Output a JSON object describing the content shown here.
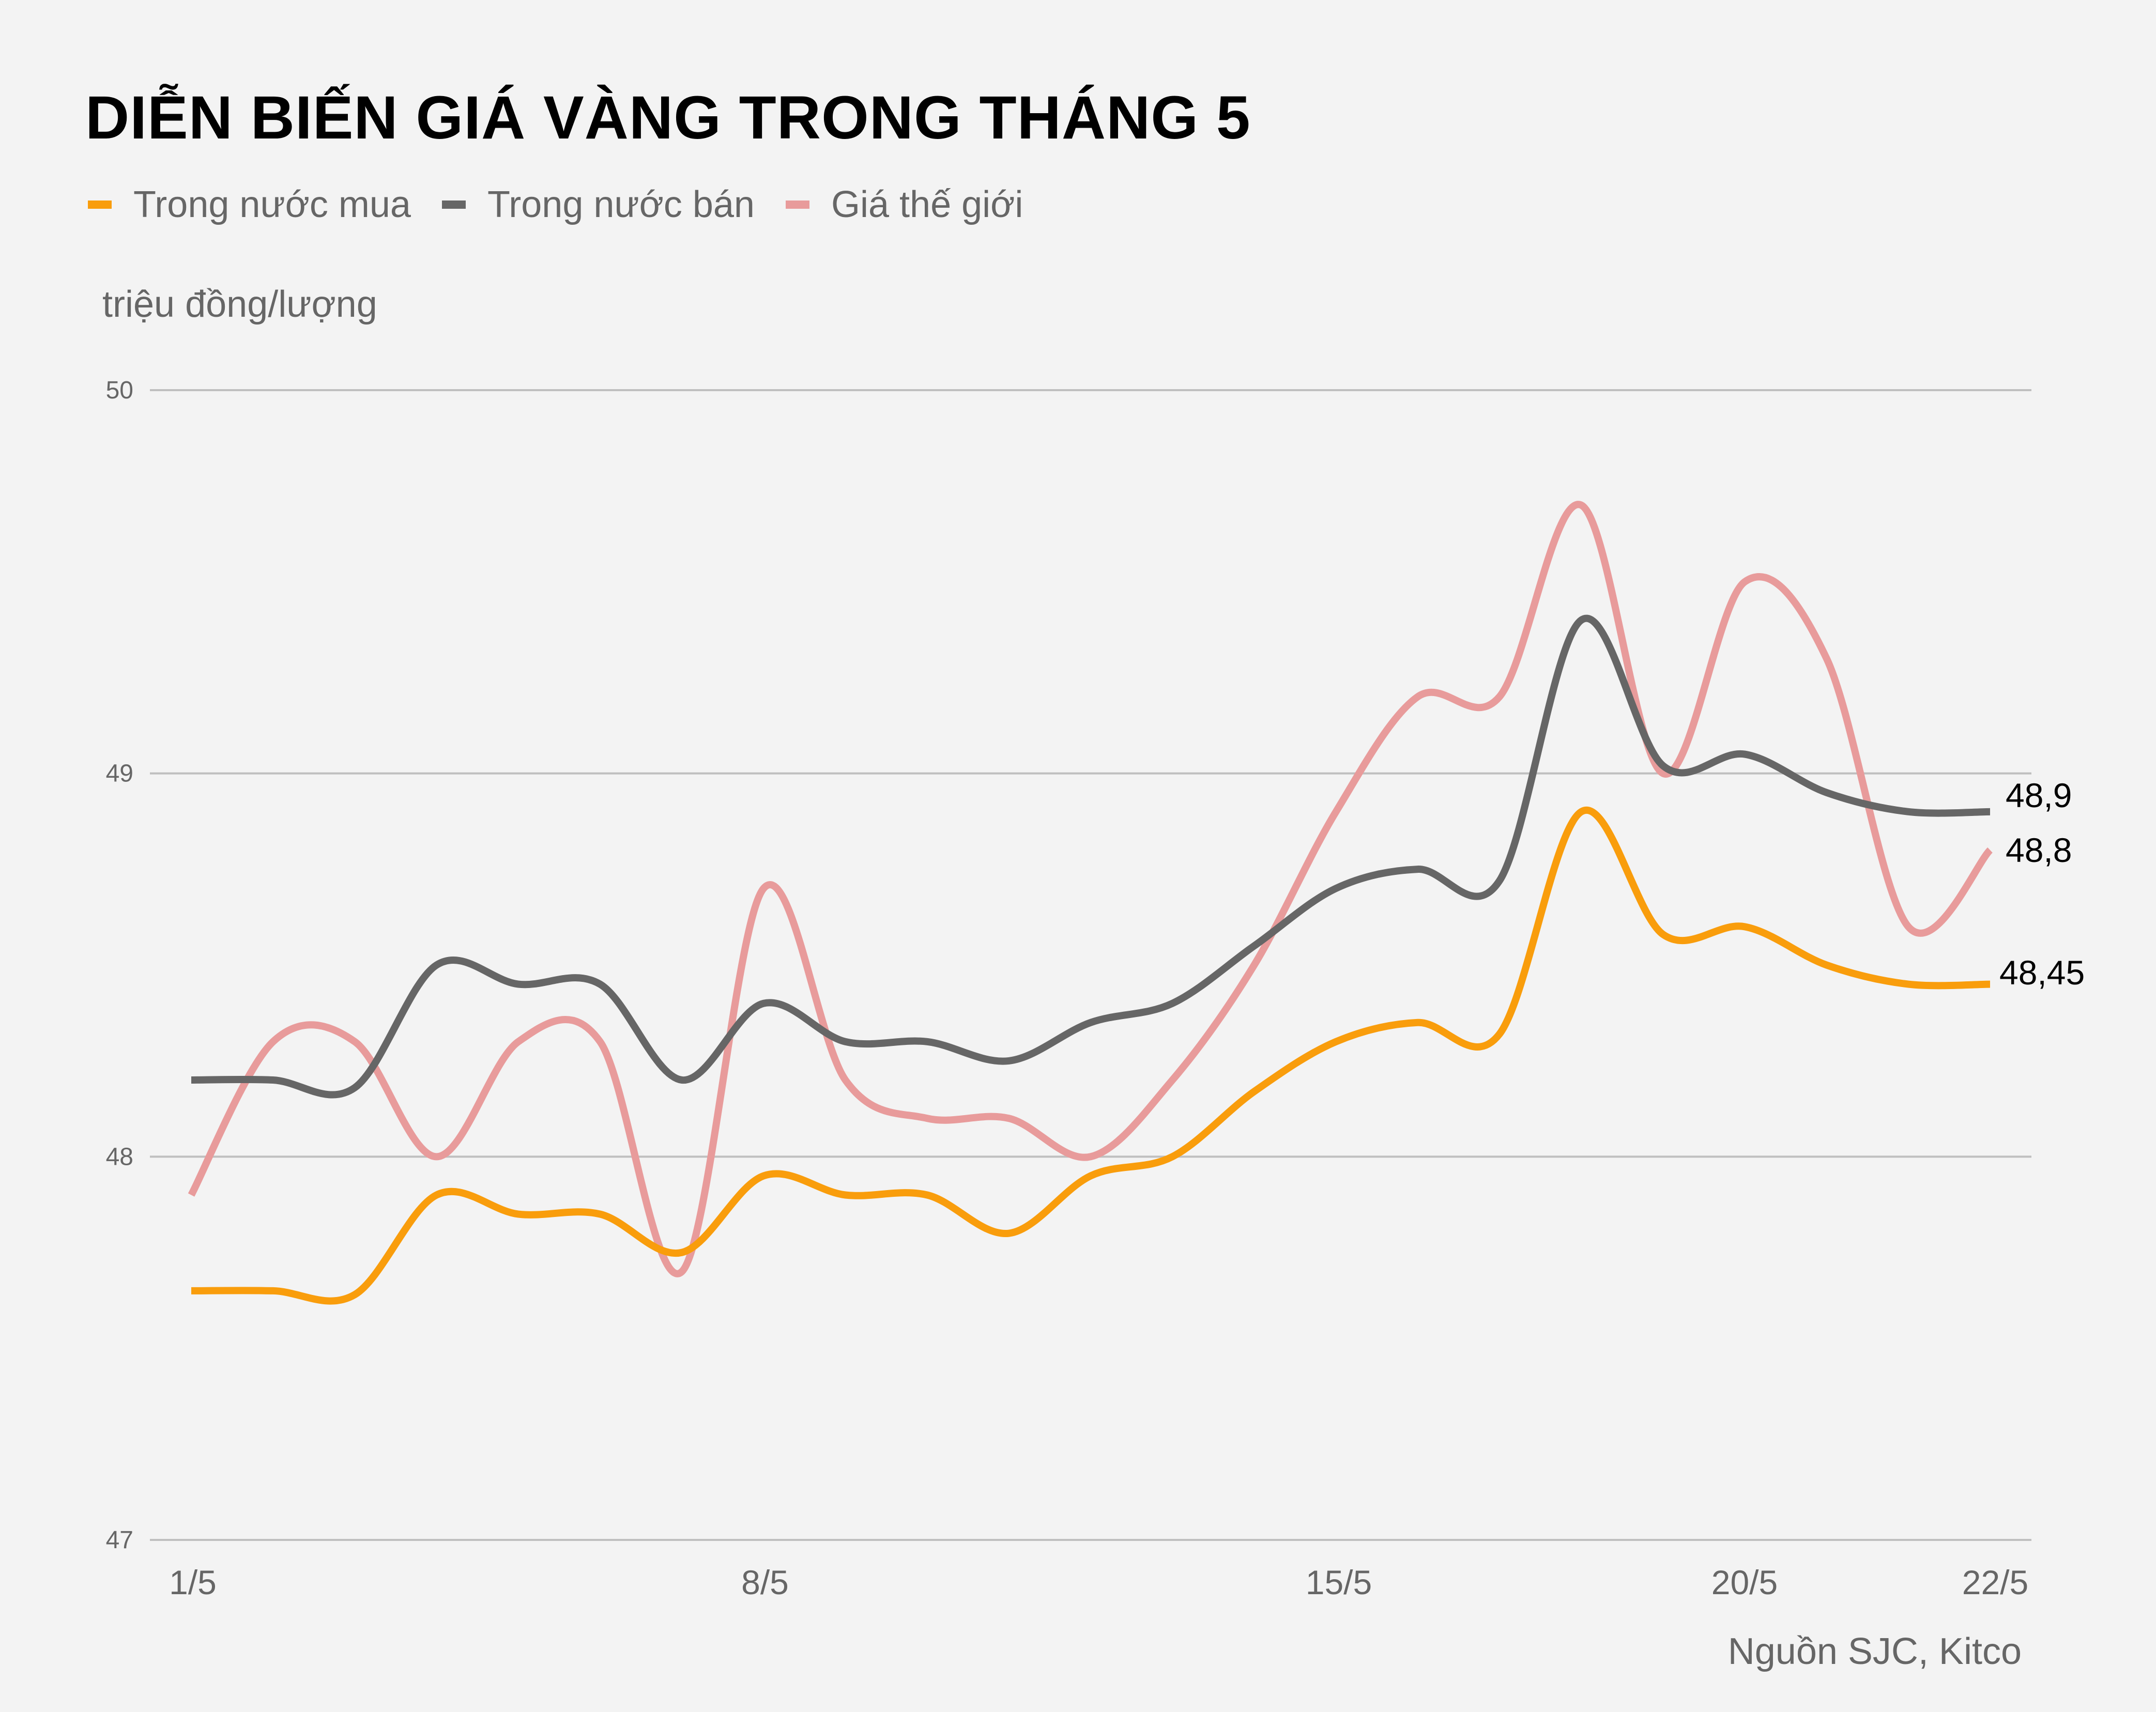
{
  "title": "DIỄN BIẾN GIÁ VÀNG TRONG THÁNG 5",
  "unit_label": "triệu đồng/lượng",
  "source": "Nguồn SJC, Kitco",
  "legend": [
    {
      "label": "Trong nước mua",
      "color": "#f99d0c"
    },
    {
      "label": "Trong nước bán",
      "color": "#666666"
    },
    {
      "label": "Giá thế giới",
      "color": "#e89b9b"
    }
  ],
  "end_labels": {
    "ban": "48,9",
    "the_gioi": "48,8",
    "mua": "48,45"
  },
  "chart_data": {
    "type": "line",
    "title": "DIỄN BIẾN GIÁ VÀNG TRONG THÁNG 5",
    "xlabel": "",
    "ylabel": "triệu đồng/lượng",
    "ylim": [
      47,
      50
    ],
    "yticks": [
      47,
      48,
      49,
      50
    ],
    "xtick_labels": [
      "1/5",
      "8/5",
      "15/5",
      "20/5",
      "22/5"
    ],
    "grid": true,
    "legend_position": "top",
    "x": [
      0,
      1,
      2,
      3,
      4,
      5,
      6,
      7,
      8,
      9,
      10,
      11,
      12,
      13,
      14,
      15,
      16,
      17,
      18,
      19,
      20,
      21,
      22
    ],
    "series": [
      {
        "name": "Trong nước mua",
        "color": "#f99d0c",
        "values": [
          47.65,
          47.65,
          47.64,
          47.9,
          47.85,
          47.85,
          47.75,
          47.95,
          47.9,
          47.9,
          47.8,
          47.95,
          48.0,
          48.17,
          48.3,
          48.35,
          48.32,
          48.9,
          48.58,
          48.6,
          48.5,
          48.45,
          48.45
        ]
      },
      {
        "name": "Trong nước bán",
        "color": "#666666",
        "values": [
          48.2,
          48.2,
          48.18,
          48.5,
          48.45,
          48.45,
          48.2,
          48.4,
          48.3,
          48.3,
          48.25,
          48.35,
          48.4,
          48.55,
          48.7,
          48.75,
          48.72,
          49.4,
          49.02,
          49.05,
          48.95,
          48.9,
          48.9
        ]
      },
      {
        "name": "Giá thế giới",
        "color": "#e89b9b",
        "values": [
          47.9,
          48.3,
          48.3,
          48.0,
          48.3,
          48.3,
          47.7,
          48.7,
          48.2,
          48.1,
          48.1,
          48.0,
          48.2,
          48.5,
          48.9,
          49.2,
          49.2,
          49.7,
          49.0,
          49.5,
          49.3,
          48.6,
          48.8
        ]
      }
    ]
  }
}
